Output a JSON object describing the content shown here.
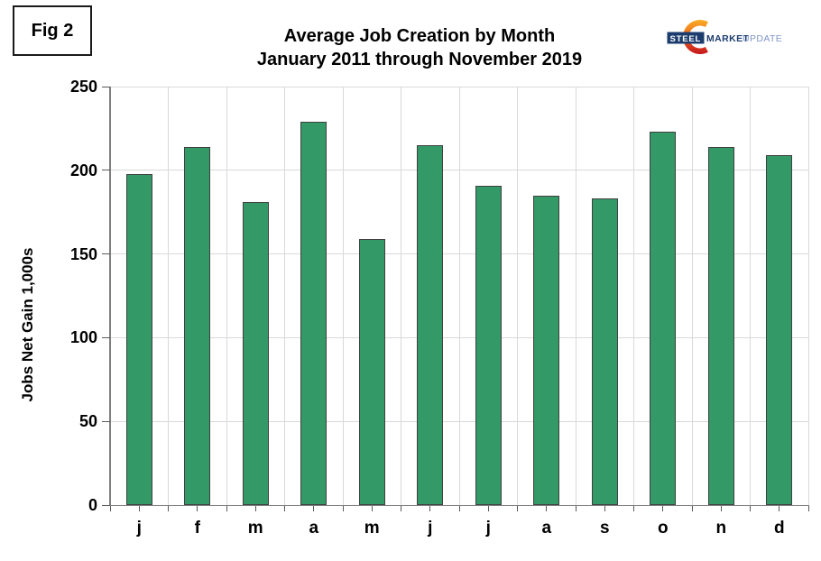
{
  "fig": {
    "label": "Fig 2"
  },
  "logo": {
    "steel": "STEEL",
    "market": "MARKET",
    "update": "UPDATE",
    "navy": "#1c3c6e",
    "update_color": "#8096c8",
    "orange_top": "#f9ae26",
    "orange_mid": "#ef6b1e",
    "orange_bottom": "#c4161c"
  },
  "chart_data": {
    "type": "bar",
    "title": "Average Job Creation by Month",
    "subtitle": "January 2011 through November 2019",
    "ylabel": "Jobs Net Gain 1,000s",
    "xlabel": "",
    "categories": [
      "j",
      "f",
      "m",
      "a",
      "m",
      "j",
      "j",
      "a",
      "s",
      "o",
      "n",
      "d"
    ],
    "values": [
      198,
      214,
      181,
      229,
      159,
      215,
      191,
      185,
      183,
      223,
      214,
      209
    ],
    "ylim": [
      0,
      250
    ],
    "yticks": [
      0,
      50,
      100,
      150,
      200,
      250
    ],
    "grid": true,
    "legend_position": "none",
    "bar_color": "#339966",
    "bar_border_color": "#404040",
    "gridline_color": "#d9d9d9",
    "axis_color": "#7f7f7f"
  }
}
